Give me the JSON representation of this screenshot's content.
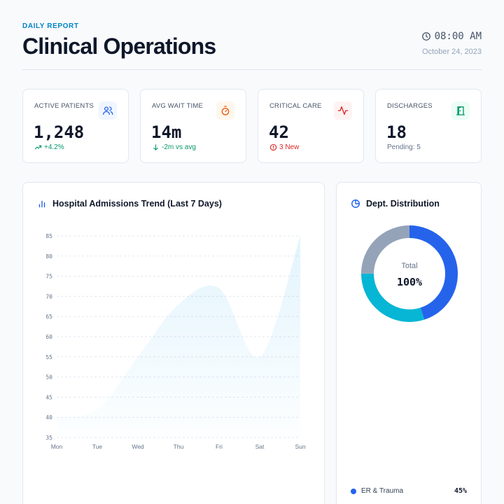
{
  "header": {
    "eyebrow": "DAILY REPORT",
    "title": "Clinical Operations",
    "time": "08:00 AM",
    "date": "October 24, 2023"
  },
  "kpis": [
    {
      "label": "ACTIVE PATIENTS",
      "value": "1,248",
      "sub": "+4.2%",
      "icon": "users-icon",
      "accent": "#2563eb"
    },
    {
      "label": "AVG WAIT TIME",
      "value": "14m",
      "sub": "-2m vs avg",
      "icon": "stopwatch-icon",
      "accent": "#ea580c"
    },
    {
      "label": "CRITICAL CARE",
      "value": "42",
      "sub": "3 New",
      "icon": "activity-icon",
      "accent": "#dc2626"
    },
    {
      "label": "DISCHARGES",
      "value": "18",
      "sub": "Pending: 5",
      "icon": "door-exit-icon",
      "accent": "#059669"
    }
  ],
  "trend": {
    "title": "Hospital Admissions Trend (Last 7 Days)"
  },
  "distribution": {
    "title": "Dept. Distribution",
    "center_label": "Total",
    "center_value": "100%",
    "legend": [
      {
        "label": "ER & Trauma",
        "pct": "45%"
      }
    ]
  },
  "chart_data": [
    {
      "type": "area",
      "title": "Hospital Admissions Trend (Last 7 Days)",
      "categories": [
        "Mon",
        "Tue",
        "Wed",
        "Thu",
        "Fri",
        "Sat",
        "Sun"
      ],
      "series": [
        {
          "values": [
            40,
            42,
            55,
            68,
            72,
            55,
            85
          ]
        }
      ],
      "yticks": [
        35,
        40,
        45,
        50,
        55,
        60,
        65,
        70,
        75,
        80,
        85
      ],
      "ylim": [
        35,
        85
      ],
      "grid": true,
      "color": "#0ea5e9"
    },
    {
      "type": "pie",
      "title": "Dept. Distribution",
      "slices": [
        {
          "label": "ER & Trauma",
          "value": 45,
          "color": "#2563eb"
        },
        {
          "label": "",
          "value": 30,
          "color": "#06b6d4"
        },
        {
          "label": "",
          "value": 25,
          "color": "#94a3b8"
        }
      ]
    }
  ]
}
